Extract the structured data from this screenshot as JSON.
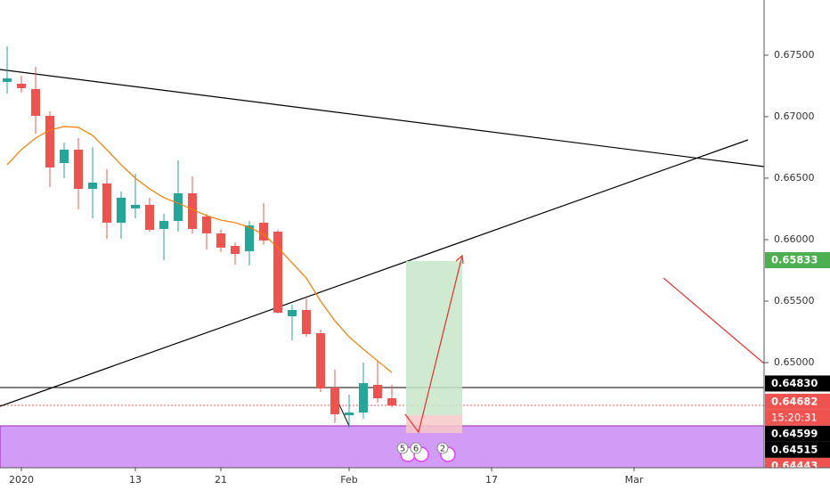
{
  "chart_data": {
    "type": "candlestick",
    "ylim": [
      0.64145,
      0.67949
    ],
    "xlim": [
      -0.5,
      53.125
    ],
    "yticks": [
      {
        "value": 0.675,
        "label": "0.67500"
      },
      {
        "value": 0.67,
        "label": "0.67000"
      },
      {
        "value": 0.665,
        "label": "0.66500"
      },
      {
        "value": 0.66,
        "label": "0.66000"
      },
      {
        "value": 0.655,
        "label": "0.65500"
      },
      {
        "value": 0.65,
        "label": "0.65000"
      }
    ],
    "xticks": [
      {
        "value": 1,
        "label": "2020"
      },
      {
        "value": 9,
        "label": "13"
      },
      {
        "value": 15,
        "label": "21"
      },
      {
        "value": 24,
        "label": "Feb"
      },
      {
        "value": 34,
        "label": "17"
      },
      {
        "value": 44,
        "label": "Mar"
      }
    ],
    "up_color": "#26a69a",
    "down_color": "#ef5350",
    "candles": {
      "open": [
        0.67283,
        0.67268,
        0.67225,
        0.67007,
        0.66623,
        0.66732,
        0.66413,
        0.66457,
        0.66138,
        0.66254,
        0.66283,
        0.66087,
        0.66152,
        0.66377,
        0.66188,
        0.66051,
        0.65949,
        0.65906,
        0.66138,
        0.66065,
        0.65377,
        0.65428,
        0.65239,
        0.64797,
        0.64572,
        0.64594,
        0.64819,
        0.6471
      ],
      "high": [
        0.67572,
        0.67333,
        0.67406,
        0.67043,
        0.6679,
        0.66826,
        0.66753,
        0.66572,
        0.66391,
        0.66536,
        0.66341,
        0.6621,
        0.66645,
        0.66514,
        0.6621,
        0.6608,
        0.65978,
        0.66152,
        0.66297,
        0.6608,
        0.65471,
        0.65522,
        0.65268,
        0.64942,
        0.64739,
        0.65,
        0.65014,
        0.64819
      ],
      "low": [
        0.67188,
        0.67196,
        0.66862,
        0.66428,
        0.665,
        0.66246,
        0.66174,
        0.66007,
        0.66007,
        0.66174,
        0.66065,
        0.65833,
        0.66065,
        0.66051,
        0.6592,
        0.65899,
        0.65797,
        0.6579,
        0.65957,
        0.65399,
        0.65181,
        0.6521,
        0.64761,
        0.64507,
        0.64471,
        0.64543,
        0.64674,
        0.64638
      ],
      "close": [
        0.67312,
        0.67232,
        0.67007,
        0.66587,
        0.66732,
        0.66413,
        0.66464,
        0.66138,
        0.66341,
        0.66283,
        0.6608,
        0.66152,
        0.66377,
        0.66087,
        0.66051,
        0.65935,
        0.65884,
        0.66116,
        0.65993,
        0.65406,
        0.65428,
        0.65232,
        0.6479,
        0.6458,
        0.64594,
        0.64833,
        0.6471,
        0.64652
      ]
    },
    "moving_average": {
      "color": "#f57c00",
      "values": [
        0.66609,
        0.66732,
        0.66826,
        0.66891,
        0.6692,
        0.66913,
        0.66848,
        0.66732,
        0.66609,
        0.665,
        0.66413,
        0.66341,
        0.66297,
        0.66246,
        0.66195,
        0.66159,
        0.66138,
        0.66101,
        0.66043,
        0.65935,
        0.65811,
        0.65688,
        0.655,
        0.6534,
        0.6521,
        0.65109,
        0.65014,
        0.64919
      ]
    },
    "price_labels": [
      {
        "value": 0.65833,
        "label": "0.65833",
        "color": "#4caf50"
      },
      {
        "value": 0.6483,
        "label": "0.64830",
        "color": "#000000"
      },
      {
        "value": 0.64682,
        "label": "0.64682",
        "color": "#ef5350",
        "countdown": "15:20:31"
      },
      {
        "value": 0.64599,
        "label": "0.64599",
        "color": "#000000"
      },
      {
        "value": 0.64515,
        "label": "0.64515",
        "color": "#000000"
      },
      {
        "value": 0.64443,
        "label": "0.64443",
        "color": "#ef5350"
      }
    ],
    "event_badges": [
      5,
      6,
      2
    ]
  }
}
